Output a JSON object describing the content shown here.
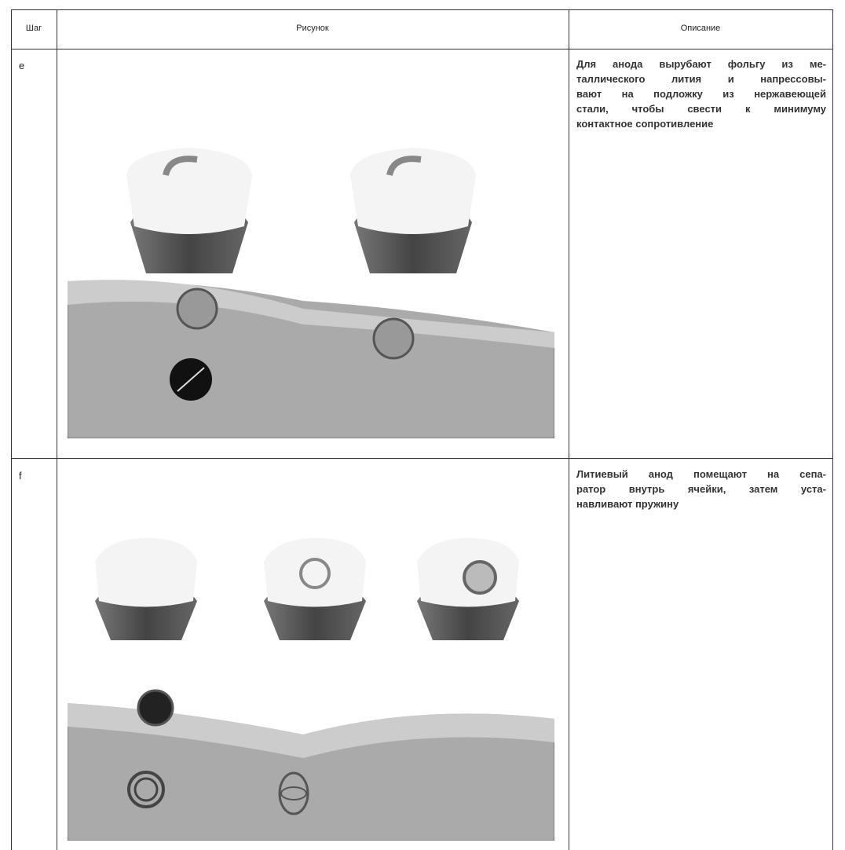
{
  "header": {
    "step": "Шаг",
    "figure": "Рисунок",
    "description": "Описание"
  },
  "rows": [
    {
      "step": "e",
      "description": [
        "Для анода вырубают фольгу из ме-",
        "таллического лития и напрессовы-",
        "вают на подложку из нержавеющей",
        "стали, чтобы свести к минимуму",
        "контактное сопротивление"
      ]
    },
    {
      "step": "f",
      "description": [
        "Литиевый анод помещают на сепа-",
        "ратор внутрь ячейки, затем уста-",
        "навливают пружину"
      ]
    }
  ]
}
